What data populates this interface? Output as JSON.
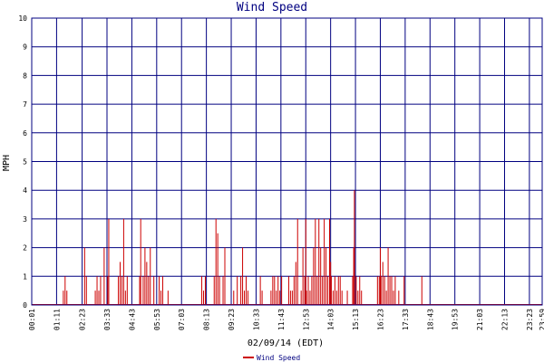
{
  "chart_data": {
    "type": "bar",
    "title": "Wind Speed",
    "xlabel": "02/09/14 (EDT)",
    "ylabel": "MPH",
    "ylim": [
      0,
      10
    ],
    "y_ticks": [
      "0",
      "1",
      "2",
      "3",
      "4",
      "5",
      "6",
      "7",
      "8",
      "9",
      "10"
    ],
    "x_ticks": [
      "00:01",
      "01:11",
      "02:23",
      "03:33",
      "04:43",
      "05:53",
      "07:03",
      "08:13",
      "09:23",
      "10:33",
      "11:43",
      "12:53",
      "14:03",
      "15:13",
      "16:23",
      "17:33",
      "18:43",
      "19:53",
      "21:03",
      "22:13",
      "23:23",
      "23:59"
    ],
    "grid": true,
    "legend_position": "bottom-center",
    "colors": {
      "series": "#cc0000",
      "grid": "#000080",
      "frame": "#000080",
      "title": "#000080"
    },
    "series": [
      {
        "name": "Wind Speed",
        "x": [
          "01:30",
          "01:35",
          "01:40",
          "02:30",
          "02:35",
          "03:00",
          "03:05",
          "03:10",
          "03:15",
          "03:25",
          "03:35",
          "03:38",
          "04:05",
          "04:10",
          "04:15",
          "04:20",
          "04:25",
          "04:30",
          "05:05",
          "05:08",
          "05:15",
          "05:20",
          "05:25",
          "05:30",
          "05:35",
          "05:45",
          "06:00",
          "06:05",
          "06:10",
          "06:25",
          "08:00",
          "08:05",
          "08:10",
          "08:35",
          "08:40",
          "08:45",
          "08:50",
          "09:00",
          "09:05",
          "09:30",
          "09:40",
          "09:50",
          "09:55",
          "10:00",
          "10:05",
          "10:10",
          "10:45",
          "10:50",
          "11:15",
          "11:20",
          "11:25",
          "11:30",
          "11:35",
          "11:40",
          "11:45",
          "12:05",
          "12:10",
          "12:15",
          "12:20",
          "12:25",
          "12:30",
          "12:40",
          "12:45",
          "12:50",
          "12:53",
          "12:55",
          "13:00",
          "13:05",
          "13:10",
          "13:15",
          "13:20",
          "13:25",
          "13:30",
          "13:35",
          "13:40",
          "13:45",
          "13:50",
          "13:55",
          "14:00",
          "14:03",
          "14:05",
          "14:10",
          "14:15",
          "14:20",
          "14:25",
          "14:30",
          "14:35",
          "14:50",
          "15:05",
          "15:08",
          "15:10",
          "15:15",
          "15:20",
          "15:25",
          "15:30",
          "16:15",
          "16:20",
          "16:23",
          "16:25",
          "16:30",
          "16:35",
          "16:40",
          "16:45",
          "16:50",
          "16:55",
          "17:00",
          "17:05",
          "17:15",
          "17:30",
          "18:20"
        ],
        "values": [
          0.5,
          1,
          0.5,
          2,
          1,
          0.5,
          1,
          0.5,
          1,
          2,
          1,
          3,
          1,
          1.5,
          1,
          3,
          0.5,
          1,
          1,
          3,
          1,
          2,
          1.5,
          1,
          2,
          1,
          1,
          0.5,
          1,
          0.5,
          1,
          0.5,
          1,
          1,
          3,
          2.5,
          1,
          1,
          2,
          0.5,
          1,
          1,
          2,
          0.5,
          1,
          0.5,
          1,
          0.5,
          0.5,
          1,
          1,
          0.5,
          1,
          0.5,
          1,
          1,
          0.5,
          0.5,
          1,
          1.5,
          3,
          0.5,
          2,
          1,
          3,
          0.5,
          1,
          0.5,
          1,
          2,
          3,
          1,
          3,
          2,
          1,
          3,
          2,
          1,
          3,
          1.5,
          1,
          0.5,
          1,
          0.5,
          1,
          1,
          0.5,
          0.5,
          1,
          2,
          4,
          1,
          0.5,
          1,
          0.5,
          1,
          1,
          2,
          1,
          1.5,
          1,
          0.5,
          2,
          1,
          1,
          0.5,
          1,
          0.5,
          1,
          1
        ]
      }
    ]
  }
}
